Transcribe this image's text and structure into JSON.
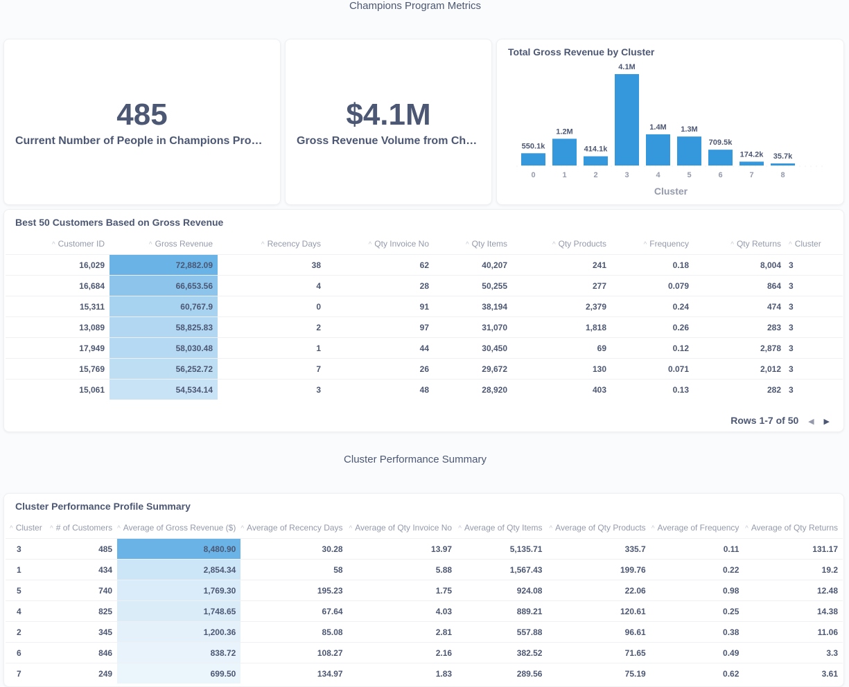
{
  "sections": {
    "top_title": "Champions Program Metrics",
    "bottom_title": "Cluster Performance Summary"
  },
  "scalar1": {
    "value": "485",
    "label": "Current Number of People in Champions Program"
  },
  "scalar2": {
    "value": "$4.1M",
    "label": "Gross Revenue Volume from Champions Program"
  },
  "colors": {
    "bar": "#3598dc",
    "accent_heat": "#6ab3e6"
  },
  "chart_data": {
    "type": "bar",
    "title": "Total Gross Revenue by Cluster",
    "xlabel": "Cluster",
    "ylabel": "",
    "categories": [
      "0",
      "1",
      "2",
      "3",
      "4",
      "5",
      "6",
      "7",
      "8"
    ],
    "values": [
      550100,
      1200000,
      414100,
      4100000,
      1400000,
      1300000,
      709500,
      174200,
      35700
    ],
    "data_labels": [
      "550.1k",
      "1.2M",
      "414.1k",
      "4.1M",
      "1.4M",
      "1.3M",
      "709.5k",
      "174.2k",
      "35.7k"
    ],
    "grid": false
  },
  "customers_table": {
    "title": "Best 50 Customers Based on Gross Revenue",
    "columns": [
      "Customer ID",
      "Gross Revenue",
      "Recency Days",
      "Qty Invoice No",
      "Qty Items",
      "Qty Products",
      "Frequency",
      "Qty Returns",
      "Cluster"
    ],
    "rows": [
      [
        "16,029",
        "72,882.09",
        "38",
        "62",
        "40,207",
        "241",
        "0.18",
        "8,004",
        "3"
      ],
      [
        "16,684",
        "66,653.56",
        "4",
        "28",
        "50,255",
        "277",
        "0.079",
        "864",
        "3"
      ],
      [
        "15,311",
        "60,767.9",
        "0",
        "91",
        "38,194",
        "2,379",
        "0.24",
        "474",
        "3"
      ],
      [
        "13,089",
        "58,825.83",
        "2",
        "97",
        "31,070",
        "1,818",
        "0.26",
        "283",
        "3"
      ],
      [
        "17,949",
        "58,030.48",
        "1",
        "44",
        "30,450",
        "69",
        "0.12",
        "2,878",
        "3"
      ],
      [
        "15,769",
        "56,252.72",
        "7",
        "26",
        "29,672",
        "130",
        "0.071",
        "2,012",
        "3"
      ],
      [
        "15,061",
        "54,534.14",
        "3",
        "48",
        "28,920",
        "403",
        "0.13",
        "282",
        "3"
      ]
    ],
    "heat": [
      1.0,
      0.75,
      0.55,
      0.48,
      0.45,
      0.38,
      0.3
    ],
    "pager": "Rows 1-7 of 50"
  },
  "cluster_table": {
    "title": "Cluster Performance Profile Summary",
    "columns": [
      "Cluster",
      "# of Customers",
      "Average of Gross Revenue ($)",
      "Average of Recency Days",
      "Average of Qty Invoice No",
      "Average of Qty Items",
      "Average of Qty Products",
      "Average of Frequency",
      "Average of Qty Returns"
    ],
    "rows": [
      [
        "3",
        "485",
        "8,480.90",
        "30.28",
        "13.97",
        "5,135.71",
        "335.7",
        "0.11",
        "131.17"
      ],
      [
        "1",
        "434",
        "2,854.34",
        "58",
        "5.88",
        "1,567.43",
        "199.76",
        "0.22",
        "19.2"
      ],
      [
        "5",
        "740",
        "1,769.30",
        "195.23",
        "1.75",
        "924.08",
        "22.06",
        "0.98",
        "12.48"
      ],
      [
        "4",
        "825",
        "1,748.65",
        "67.64",
        "4.03",
        "889.21",
        "120.61",
        "0.25",
        "14.38"
      ],
      [
        "2",
        "345",
        "1,200.36",
        "85.08",
        "2.81",
        "557.88",
        "96.61",
        "0.38",
        "11.06"
      ],
      [
        "6",
        "846",
        "838.72",
        "108.27",
        "2.16",
        "382.52",
        "71.65",
        "0.49",
        "3.3"
      ],
      [
        "7",
        "249",
        "699.50",
        "134.97",
        "1.83",
        "289.56",
        "75.19",
        "0.62",
        "3.61"
      ]
    ],
    "heat": [
      1.0,
      0.28,
      0.18,
      0.17,
      0.1,
      0.07,
      0.05
    ]
  }
}
